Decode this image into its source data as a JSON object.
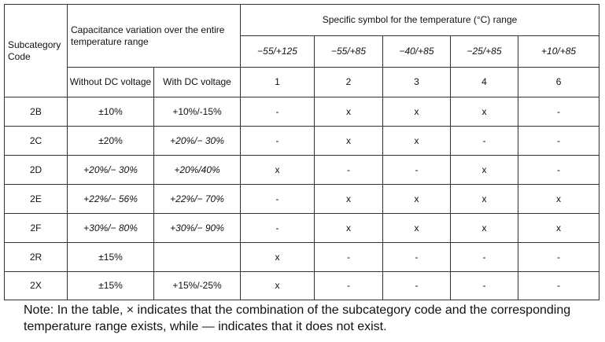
{
  "table": {
    "header": {
      "subcategory_code": "Subcategory Code",
      "capacitance_variation": "Capacitance variation over the entire temperature range",
      "specific_symbol": "Specific symbol for the temperature (°C) range",
      "without_dc": "Without DC voltage",
      "with_dc": "With DC voltage",
      "ranges": [
        "−55/+125",
        "−55/+85",
        "−40/+85",
        "−25/+85",
        "+10/+85"
      ],
      "symbols": [
        "1",
        "2",
        "3",
        "4",
        "6"
      ]
    },
    "rows": [
      {
        "code": "2B",
        "without_dc": "±10%",
        "with_dc": "+10%/-15%",
        "marks": [
          "-",
          "x",
          "x",
          "x",
          "-"
        ]
      },
      {
        "code": "2C",
        "without_dc": "±20%",
        "with_dc": "+20%/− 30%",
        "marks": [
          "-",
          "x",
          "x",
          "-",
          "-"
        ]
      },
      {
        "code": "2D",
        "without_dc": "+20%/− 30%",
        "with_dc": "+20%/40%",
        "marks": [
          "x",
          "-",
          "-",
          "x",
          "-"
        ]
      },
      {
        "code": "2E",
        "without_dc": "+22%/− 56%",
        "with_dc": "+22%/− 70%",
        "marks": [
          "-",
          "x",
          "x",
          "x",
          "x"
        ]
      },
      {
        "code": "2F",
        "without_dc": "+30%/− 80%",
        "with_dc": "+30%/− 90%",
        "marks": [
          "-",
          "x",
          "x",
          "x",
          "x"
        ]
      },
      {
        "code": "2R",
        "without_dc": "±15%",
        "with_dc": "",
        "marks": [
          "x",
          "-",
          "-",
          "-",
          "-"
        ]
      },
      {
        "code": "2X",
        "without_dc": "±15%",
        "with_dc": "+15%/-25%",
        "marks": [
          "x",
          "-",
          "-",
          "-",
          "-"
        ]
      }
    ]
  },
  "note": "Note: In the table, × indicates that the combination of the subcategory code and the corresponding temperature range exists, while — indicates that it does not exist."
}
